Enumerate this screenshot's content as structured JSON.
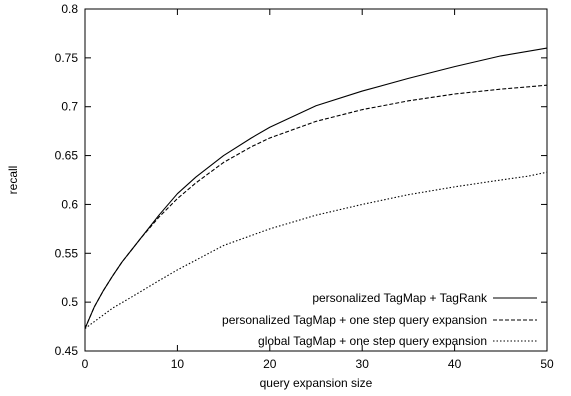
{
  "chart_data": {
    "type": "line",
    "title": "",
    "xlabel": "query expansion size",
    "ylabel": "recall",
    "xlim": [
      0,
      50
    ],
    "ylim": [
      0.45,
      0.8
    ],
    "xticks": [
      0,
      10,
      20,
      30,
      40,
      50
    ],
    "yticks": [
      0.45,
      0.5,
      0.55,
      0.6,
      0.65,
      0.7,
      0.75,
      0.8
    ],
    "xtick_labels": [
      "0",
      "10",
      "20",
      "30",
      "40",
      "50"
    ],
    "ytick_labels": [
      "0.45",
      "0.5",
      "0.55",
      "0.6",
      "0.65",
      "0.7",
      "0.75",
      "0.8"
    ],
    "grid": false,
    "legend_position": "bottom-right",
    "series": [
      {
        "name": "personalized TagMap + TagRank",
        "style": "solid",
        "x": [
          0,
          1,
          2,
          3,
          4,
          5,
          6,
          8,
          10,
          12,
          15,
          18,
          20,
          25,
          30,
          35,
          40,
          45,
          50
        ],
        "y": [
          0.473,
          0.495,
          0.512,
          0.527,
          0.541,
          0.553,
          0.565,
          0.589,
          0.611,
          0.628,
          0.65,
          0.668,
          0.679,
          0.701,
          0.716,
          0.729,
          0.741,
          0.752,
          0.76
        ]
      },
      {
        "name": "personalized TagMap + one step query expansion",
        "style": "dashed",
        "x": [
          0,
          1,
          2,
          3,
          4,
          5,
          6,
          8,
          10,
          12,
          15,
          18,
          20,
          25,
          30,
          35,
          40,
          45,
          50
        ],
        "y": [
          0.473,
          0.495,
          0.512,
          0.527,
          0.541,
          0.553,
          0.565,
          0.587,
          0.606,
          0.622,
          0.643,
          0.659,
          0.668,
          0.685,
          0.697,
          0.706,
          0.713,
          0.718,
          0.722
        ]
      },
      {
        "name": "global TagMap + one step query expansion",
        "style": "dotted",
        "x": [
          0,
          1,
          2,
          3,
          5,
          8,
          10,
          15,
          20,
          25,
          30,
          35,
          40,
          45,
          48,
          50
        ],
        "y": [
          0.473,
          0.48,
          0.487,
          0.494,
          0.505,
          0.522,
          0.533,
          0.558,
          0.575,
          0.589,
          0.6,
          0.61,
          0.618,
          0.625,
          0.629,
          0.633
        ]
      }
    ]
  }
}
